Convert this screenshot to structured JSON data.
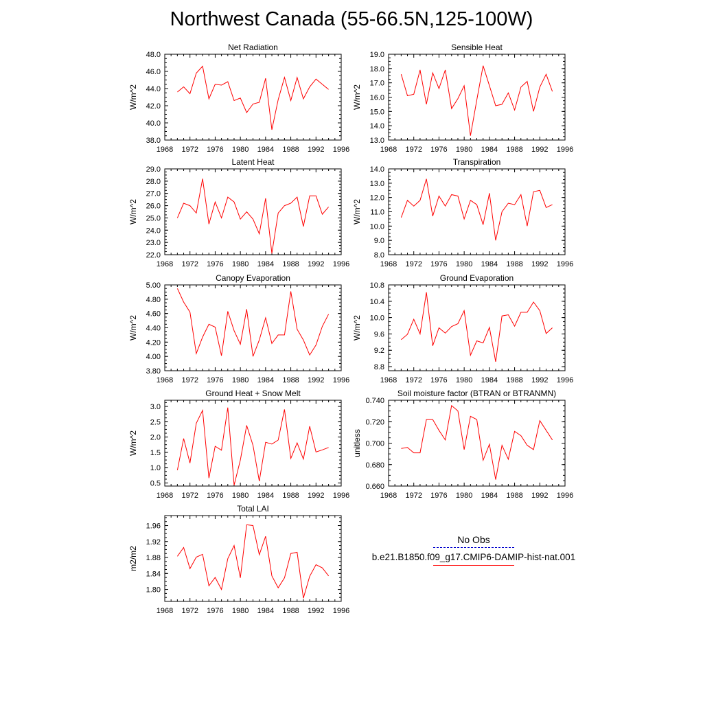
{
  "title": "Northwest Canada (55-66.5N,125-100W)",
  "line_color": "#ff0000",
  "obs_color": "#0000cc",
  "legend": {
    "obs_label": "No Obs",
    "model_label": "b.e21.B1850.f09_g17.CMIP6-DAMIP-hist-nat.001"
  },
  "chart_data": [
    {
      "type": "line",
      "title": "Net Radiation",
      "ylabel": "W/m^2",
      "xlabel": "",
      "xlim": [
        1968,
        1996
      ],
      "xticks": [
        "1968",
        "1972",
        "1976",
        "1980",
        "1984",
        "1988",
        "1992",
        "1996"
      ],
      "ylim": [
        38.0,
        48.0
      ],
      "yticks": [
        "38.0",
        "40.0",
        "42.0",
        "44.0",
        "46.0",
        "48.0"
      ],
      "series": [
        {
          "x": [
            1970,
            1971,
            1972,
            1973,
            1974,
            1975,
            1976,
            1977,
            1978,
            1979,
            1980,
            1981,
            1982,
            1983,
            1984,
            1985,
            1986,
            1987,
            1988,
            1989,
            1990,
            1991,
            1992,
            1993,
            1994
          ],
          "values": [
            43.6,
            44.2,
            43.4,
            45.8,
            46.6,
            42.8,
            44.5,
            44.4,
            44.8,
            42.6,
            42.9,
            41.2,
            42.2,
            42.4,
            45.2,
            39.2,
            42.7,
            45.3,
            42.6,
            45.3,
            42.8,
            44.2,
            45.1,
            44.5,
            43.9
          ]
        }
      ]
    },
    {
      "type": "line",
      "title": "Sensible Heat",
      "ylabel": "W/m^2",
      "xlabel": "",
      "xlim": [
        1968,
        1996
      ],
      "xticks": [
        "1968",
        "1972",
        "1976",
        "1980",
        "1984",
        "1988",
        "1992",
        "1996"
      ],
      "ylim": [
        13.0,
        19.0
      ],
      "yticks": [
        "13.0",
        "14.0",
        "15.0",
        "16.0",
        "17.0",
        "18.0",
        "19.0"
      ],
      "series": [
        {
          "x": [
            1970,
            1971,
            1972,
            1973,
            1974,
            1975,
            1976,
            1977,
            1978,
            1979,
            1980,
            1981,
            1982,
            1983,
            1984,
            1985,
            1986,
            1987,
            1988,
            1989,
            1990,
            1991,
            1992,
            1993,
            1994
          ],
          "values": [
            17.6,
            16.1,
            16.2,
            17.9,
            15.5,
            17.7,
            16.6,
            17.9,
            15.2,
            15.9,
            16.8,
            13.3,
            15.8,
            18.2,
            16.8,
            15.4,
            15.5,
            16.3,
            15.1,
            16.7,
            17.1,
            15.0,
            16.7,
            17.6,
            16.4
          ]
        }
      ]
    },
    {
      "type": "line",
      "title": "Latent Heat",
      "ylabel": "W/m^2",
      "xlabel": "",
      "xlim": [
        1968,
        1996
      ],
      "xticks": [
        "1968",
        "1972",
        "1976",
        "1980",
        "1984",
        "1988",
        "1992",
        "1996"
      ],
      "ylim": [
        22.0,
        29.0
      ],
      "yticks": [
        "22.0",
        "23.0",
        "24.0",
        "25.0",
        "26.0",
        "27.0",
        "28.0",
        "29.0"
      ],
      "series": [
        {
          "x": [
            1970,
            1971,
            1972,
            1973,
            1974,
            1975,
            1976,
            1977,
            1978,
            1979,
            1980,
            1981,
            1982,
            1983,
            1984,
            1985,
            1986,
            1987,
            1988,
            1989,
            1990,
            1991,
            1992,
            1993,
            1994
          ],
          "values": [
            25.0,
            26.2,
            26.0,
            25.4,
            28.2,
            24.5,
            26.3,
            25.0,
            26.7,
            26.3,
            24.9,
            25.5,
            24.9,
            23.7,
            26.6,
            22.1,
            25.4,
            26.0,
            26.2,
            26.7,
            24.3,
            26.8,
            26.8,
            25.3,
            25.9
          ]
        }
      ]
    },
    {
      "type": "line",
      "title": "Transpiration",
      "ylabel": "W/m^2",
      "xlabel": "",
      "xlim": [
        1968,
        1996
      ],
      "xticks": [
        "1968",
        "1972",
        "1976",
        "1980",
        "1984",
        "1988",
        "1992",
        "1996"
      ],
      "ylim": [
        8.0,
        14.0
      ],
      "yticks": [
        "8.0",
        "9.0",
        "10.0",
        "11.0",
        "12.0",
        "13.0",
        "14.0"
      ],
      "series": [
        {
          "x": [
            1970,
            1971,
            1972,
            1973,
            1974,
            1975,
            1976,
            1977,
            1978,
            1979,
            1980,
            1981,
            1982,
            1983,
            1984,
            1985,
            1986,
            1987,
            1988,
            1989,
            1990,
            1991,
            1992,
            1993,
            1994
          ],
          "values": [
            10.6,
            11.8,
            11.4,
            11.8,
            13.3,
            10.7,
            12.1,
            11.4,
            12.2,
            12.1,
            10.5,
            11.8,
            11.5,
            10.1,
            12.3,
            9.0,
            11.0,
            11.6,
            11.5,
            12.2,
            10.0,
            12.4,
            12.5,
            11.3,
            11.5
          ]
        }
      ]
    },
    {
      "type": "line",
      "title": "Canopy Evaporation",
      "ylabel": "W/m^2",
      "xlabel": "",
      "xlim": [
        1968,
        1996
      ],
      "xticks": [
        "1968",
        "1972",
        "1976",
        "1980",
        "1984",
        "1988",
        "1992",
        "1996"
      ],
      "ylim": [
        3.8,
        5.0
      ],
      "yticks": [
        "3.80",
        "4.00",
        "4.20",
        "4.40",
        "4.60",
        "4.80",
        "5.00"
      ],
      "series": [
        {
          "x": [
            1970,
            1971,
            1972,
            1973,
            1974,
            1975,
            1976,
            1977,
            1978,
            1979,
            1980,
            1981,
            1982,
            1983,
            1984,
            1985,
            1986,
            1987,
            1988,
            1989,
            1990,
            1991,
            1992,
            1993,
            1994
          ],
          "values": [
            4.95,
            4.76,
            4.62,
            4.04,
            4.27,
            4.45,
            4.41,
            4.01,
            4.63,
            4.36,
            4.17,
            4.66,
            4.0,
            4.23,
            4.54,
            4.18,
            4.3,
            4.3,
            4.91,
            4.38,
            4.23,
            4.02,
            4.16,
            4.42,
            4.59
          ]
        }
      ]
    },
    {
      "type": "line",
      "title": "Ground Evaporation",
      "ylabel": "W/m^2",
      "xlabel": "",
      "xlim": [
        1968,
        1996
      ],
      "xticks": [
        "1968",
        "1972",
        "1976",
        "1980",
        "1984",
        "1988",
        "1992",
        "1996"
      ],
      "ylim": [
        8.7,
        10.8
      ],
      "yticks": [
        "8.8",
        "9.2",
        "9.6",
        "10.0",
        "10.4",
        "10.8"
      ],
      "series": [
        {
          "x": [
            1970,
            1971,
            1972,
            1973,
            1974,
            1975,
            1976,
            1977,
            1978,
            1979,
            1980,
            1981,
            1982,
            1983,
            1984,
            1985,
            1986,
            1987,
            1988,
            1989,
            1990,
            1991,
            1992,
            1993,
            1994
          ],
          "values": [
            9.46,
            9.59,
            9.96,
            9.6,
            10.62,
            9.31,
            9.75,
            9.62,
            9.78,
            9.85,
            10.17,
            9.08,
            9.43,
            9.38,
            9.76,
            8.92,
            10.04,
            10.07,
            9.79,
            10.13,
            10.13,
            10.38,
            10.17,
            9.61,
            9.75
          ]
        }
      ]
    },
    {
      "type": "line",
      "title": "Ground Heat + Snow Melt",
      "ylabel": "W/m^2",
      "xlabel": "",
      "xlim": [
        1968,
        1996
      ],
      "xticks": [
        "1968",
        "1972",
        "1976",
        "1980",
        "1984",
        "1988",
        "1992",
        "1996"
      ],
      "ylim": [
        0.4,
        3.2
      ],
      "yticks": [
        "0.5",
        "1.0",
        "1.5",
        "2.0",
        "2.5",
        "3.0"
      ],
      "series": [
        {
          "x": [
            1970,
            1971,
            1972,
            1973,
            1974,
            1975,
            1976,
            1977,
            1978,
            1979,
            1980,
            1981,
            1982,
            1983,
            1984,
            1985,
            1986,
            1987,
            1988,
            1989,
            1990,
            1991,
            1992,
            1993,
            1994
          ],
          "values": [
            0.92,
            1.95,
            1.15,
            2.45,
            2.87,
            0.66,
            1.7,
            1.57,
            2.96,
            0.43,
            1.25,
            2.38,
            1.73,
            0.56,
            1.83,
            1.77,
            1.9,
            2.9,
            1.3,
            1.81,
            1.28,
            2.35,
            1.51,
            1.58,
            1.66
          ]
        }
      ]
    },
    {
      "type": "line",
      "title": "Soil moisture factor (BTRAN or BTRANMN)",
      "ylabel": "unitless",
      "xlabel": "",
      "xlim": [
        1968,
        1996
      ],
      "xticks": [
        "1968",
        "1972",
        "1976",
        "1980",
        "1984",
        "1988",
        "1992",
        "1996"
      ],
      "ylim": [
        0.66,
        0.74
      ],
      "yticks": [
        "0.660",
        "0.680",
        "0.700",
        "0.720",
        "0.740"
      ],
      "series": [
        {
          "x": [
            1970,
            1971,
            1972,
            1973,
            1974,
            1975,
            1976,
            1977,
            1978,
            1979,
            1980,
            1981,
            1982,
            1983,
            1984,
            1985,
            1986,
            1987,
            1988,
            1989,
            1990,
            1991,
            1992,
            1993,
            1994
          ],
          "values": [
            0.695,
            0.696,
            0.691,
            0.691,
            0.722,
            0.722,
            0.712,
            0.703,
            0.735,
            0.73,
            0.694,
            0.725,
            0.722,
            0.684,
            0.699,
            0.666,
            0.698,
            0.685,
            0.711,
            0.707,
            0.698,
            0.694,
            0.721,
            0.712,
            0.703
          ]
        }
      ]
    },
    {
      "type": "line",
      "title": "Total LAI",
      "ylabel": "m2/m2",
      "xlabel": "",
      "xlim": [
        1968,
        1996
      ],
      "xticks": [
        "1968",
        "1972",
        "1976",
        "1980",
        "1984",
        "1988",
        "1992",
        "1996"
      ],
      "ylim": [
        1.77,
        1.985
      ],
      "yticks": [
        "1.80",
        "1.84",
        "1.88",
        "1.92",
        "1.96"
      ],
      "series": [
        {
          "x": [
            1970,
            1971,
            1972,
            1973,
            1974,
            1975,
            1976,
            1977,
            1978,
            1979,
            1980,
            1981,
            1982,
            1983,
            1984,
            1985,
            1986,
            1987,
            1988,
            1989,
            1990,
            1991,
            1992,
            1993,
            1994
          ],
          "values": [
            1.883,
            1.905,
            1.852,
            1.881,
            1.888,
            1.809,
            1.83,
            1.8,
            1.877,
            1.91,
            1.829,
            1.962,
            1.96,
            1.887,
            1.933,
            1.834,
            1.804,
            1.829,
            1.89,
            1.893,
            1.778,
            1.833,
            1.862,
            1.854,
            1.834
          ]
        }
      ]
    }
  ]
}
